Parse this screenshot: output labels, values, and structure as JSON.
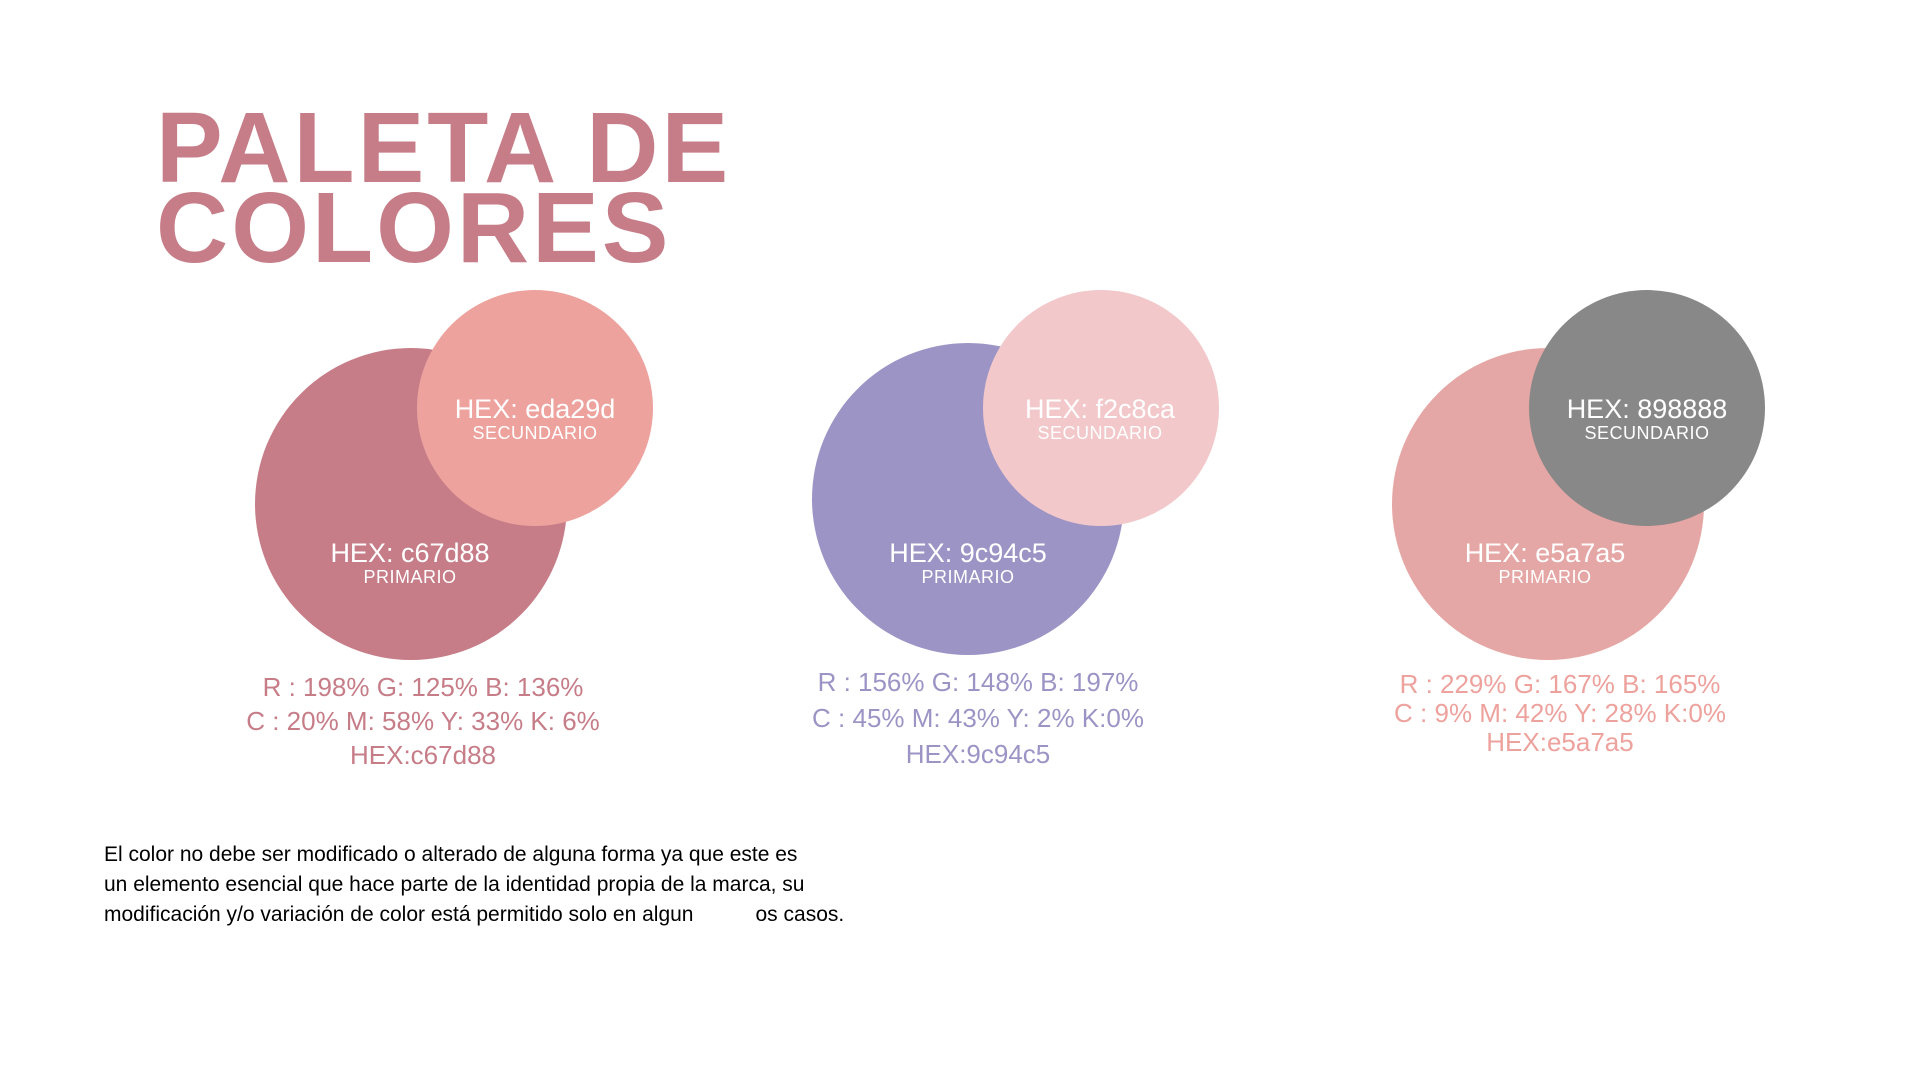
{
  "title": {
    "line1": "PALETA DE",
    "line2": "COLORES"
  },
  "palettes": [
    {
      "primary": {
        "hex_label": "HEX: c67d88",
        "role": "PRIMARIO",
        "color": "#c67d88"
      },
      "secondary": {
        "hex_label": "HEX: eda29d",
        "role": "SECUNDARIO",
        "color": "#eda29d"
      },
      "values": {
        "rgb": "R : 198% G: 125% B: 136%",
        "cmyk": "C : 20% M: 58% Y: 33% K: 6%",
        "hex": "HEX:c67d88",
        "text_color": "#c67d88"
      }
    },
    {
      "primary": {
        "hex_label": "HEX: 9c94c5",
        "role": "PRIMARIO",
        "color": "#9c94c5"
      },
      "secondary": {
        "hex_label": "HEX: f2c8ca",
        "role": "SECUNDARIO",
        "color": "#f2c8ca"
      },
      "values": {
        "rgb": "R : 156% G: 148% B: 197%",
        "cmyk": "C : 45% M: 43% Y: 2% K:0%",
        "hex": "HEX:9c94c5",
        "text_color": "#9c94c5"
      }
    },
    {
      "primary": {
        "hex_label": "HEX: e5a7a5",
        "role": "PRIMARIO",
        "color": "#e5a7a5"
      },
      "secondary": {
        "hex_label": "HEX: 898888",
        "role": "SECUNDARIO",
        "color": "#898888"
      },
      "values": {
        "rgb": "R : 229% G: 167% B: 165%",
        "cmyk": "C : 9% M: 42% Y: 28% K:0%",
        "hex": "HEX:e5a7a5",
        "text_color": "#eda29d"
      }
    }
  ],
  "footer": {
    "line1": "El color no debe ser modificado o alterado de alguna forma ya que este es",
    "line2": "un elemento esencial que hace parte de la identidad propia de la marca, su",
    "line3_a": "modificación y/o variación de color está permitido solo en algun",
    "line3_b": "os casos."
  },
  "colors": {
    "title": "#c67d88",
    "background": "#ffffff",
    "footer_text": "#000000"
  }
}
